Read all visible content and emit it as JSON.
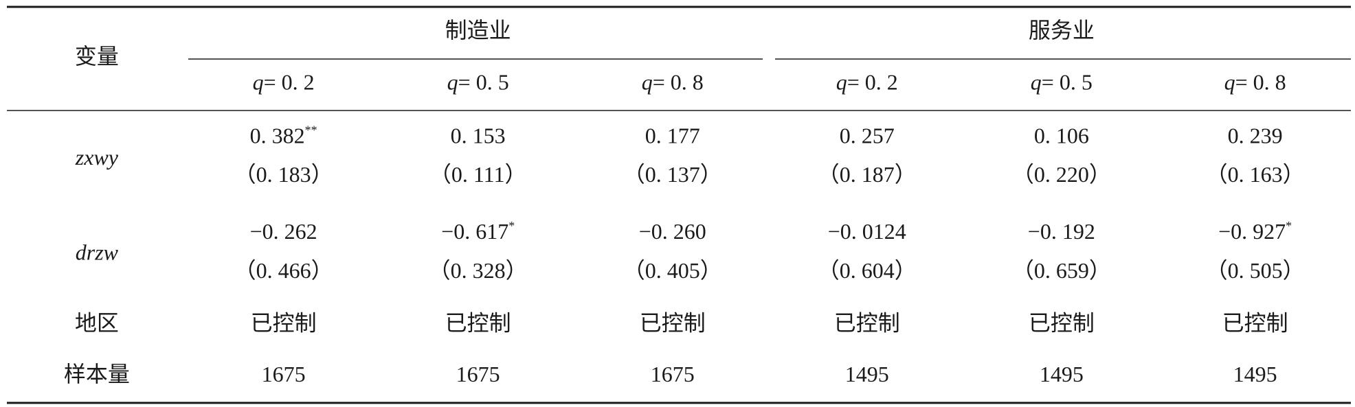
{
  "table": {
    "header": {
      "variable": "变量",
      "groups": [
        "制造业",
        "服务业"
      ],
      "quantiles": [
        {
          "symbol": "q",
          "value": "= 0. 2"
        },
        {
          "symbol": "q",
          "value": "= 0. 5"
        },
        {
          "symbol": "q",
          "value": "= 0. 8"
        },
        {
          "symbol": "q",
          "value": "= 0. 2"
        },
        {
          "symbol": "q",
          "value": "= 0. 5"
        },
        {
          "symbol": "q",
          "value": "= 0. 8"
        }
      ]
    },
    "coef_rows": [
      {
        "label": "zxwy",
        "coefs": [
          "0. 382",
          "0. 153",
          "0. 177",
          "0. 257",
          "0. 106",
          "0. 239"
        ],
        "stars": [
          "**",
          null,
          null,
          null,
          null,
          null
        ],
        "se": [
          "（0. 183）",
          "（0. 111）",
          "（0. 137）",
          "（0. 187）",
          "（0. 220）",
          "（0. 163）"
        ]
      },
      {
        "label": "drzw",
        "coefs": [
          "−0. 262",
          "−0. 617",
          "−0. 260",
          "−0. 0124",
          "−0. 192",
          "−0. 927"
        ],
        "stars": [
          null,
          "*",
          null,
          null,
          null,
          "*"
        ],
        "se": [
          "（0. 466）",
          "（0. 328）",
          "（0. 405）",
          "（0. 604）",
          "（0. 659）",
          "（0. 505）"
        ]
      }
    ],
    "text_rows": [
      {
        "label": "地区",
        "cells": [
          "已控制",
          "已控制",
          "已控制",
          "已控制",
          "已控制",
          "已控制"
        ]
      },
      {
        "label": "样本量",
        "cells": [
          "1675",
          "1675",
          "1675",
          "1495",
          "1495",
          "1495"
        ]
      }
    ]
  }
}
